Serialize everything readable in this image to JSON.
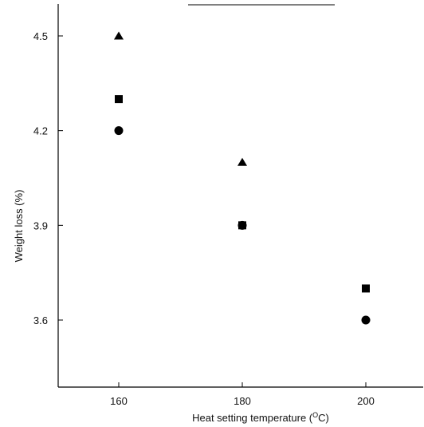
{
  "chart_data": {
    "type": "scatter",
    "title": "",
    "xlabel": "Heat setting temperature (",
    "xlabel_unit_sup": "O",
    "xlabel_unit": "C)",
    "ylabel": "Weight loss (%)",
    "x": [
      160,
      180,
      200
    ],
    "x_tick_labels": [
      "160",
      "180",
      "200"
    ],
    "y_tick_values": [
      3.6,
      3.9,
      4.2,
      4.5
    ],
    "y_tick_labels": [
      "3.6",
      "3.9",
      "4.2",
      "4.5"
    ],
    "xlim": [
      150,
      210
    ],
    "ylim": [
      3.3,
      4.6
    ],
    "grid": false,
    "series": [
      {
        "marker": "triangle",
        "color": "#000000",
        "values": [
          4.5,
          4.1,
          null
        ]
      },
      {
        "marker": "square",
        "color": "#000000",
        "values": [
          4.3,
          3.9,
          3.7
        ]
      },
      {
        "marker": "circle",
        "color": "#000000",
        "values": [
          4.2,
          3.9,
          3.6
        ]
      }
    ]
  }
}
